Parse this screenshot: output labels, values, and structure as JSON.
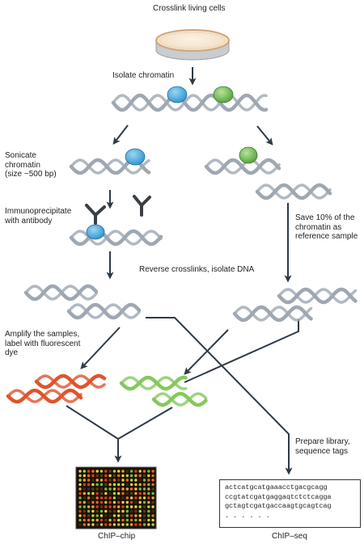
{
  "labels": {
    "crosslink": "Crosslink living cells",
    "isolate": "Isolate chromatin",
    "sonicate": [
      "Sonicate",
      "chromatin",
      "(size ~500 bp)"
    ],
    "immuno": [
      "Immunoprecipitate",
      "with antibody"
    ],
    "save": [
      "Save 10% of the",
      "chromatin as",
      "reference sample"
    ],
    "reverse": "Reverse crosslinks, isolate DNA",
    "amplify": [
      "Amplify the samples,",
      "label with fluorescent",
      "dye"
    ],
    "prepare": [
      "Prepare library,",
      "sequence tags"
    ],
    "chip_chip": "ChIP–chip",
    "chip_seq": "ChIP–seq"
  },
  "sequence_lines": [
    "actcatgcatgaaacctgacgcagg",
    "ccgtatcgatgaggaqtctctcagga",
    "gctagtcgatgaccaagtgcagtcag",
    ". . . . . ."
  ],
  "colors": {
    "dna": "#9ea8b2",
    "protein_blue": "#3da6dd",
    "protein_green": "#62b246",
    "dna_red": "#e0542c",
    "dna_green": "#86c85c",
    "arrow": "#2e3a46",
    "dish_rim": "#e9c9a5",
    "chip_bg": "#1a1208"
  },
  "icons": {
    "dish": "petri-dish-icon",
    "antibody": "antibody-icon",
    "microarray": "microarray-chip-icon"
  }
}
